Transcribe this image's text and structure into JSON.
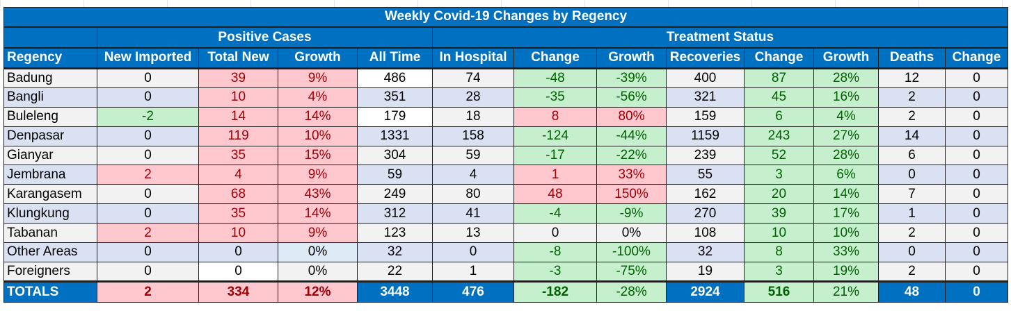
{
  "title": "Weekly Covid-19 Changes by Regency",
  "groups": {
    "positive": "Positive Cases",
    "treatment": "Treatment Status"
  },
  "headers": [
    "Regency",
    "New Imported",
    "Total New",
    "Growth",
    "All Time",
    "In Hospital",
    "Change",
    "Growth",
    "Recoveries",
    "Change",
    "Growth",
    "Deaths",
    "Change"
  ],
  "rows": [
    [
      "Badung",
      "0",
      "39",
      "9%",
      "486",
      "74",
      "-48",
      "-39%",
      "400",
      "87",
      "28%",
      "12",
      "0"
    ],
    [
      "Bangli",
      "0",
      "10",
      "4%",
      "351",
      "28",
      "-35",
      "-56%",
      "321",
      "45",
      "16%",
      "2",
      "0"
    ],
    [
      "Buleleng",
      "-2",
      "14",
      "14%",
      "179",
      "18",
      "8",
      "80%",
      "159",
      "6",
      "4%",
      "2",
      "0"
    ],
    [
      "Denpasar",
      "0",
      "119",
      "10%",
      "1331",
      "158",
      "-124",
      "-44%",
      "1159",
      "243",
      "27%",
      "14",
      "0"
    ],
    [
      "Gianyar",
      "0",
      "35",
      "15%",
      "304",
      "59",
      "-17",
      "-22%",
      "239",
      "52",
      "28%",
      "6",
      "0"
    ],
    [
      "Jembrana",
      "2",
      "4",
      "9%",
      "59",
      "4",
      "1",
      "33%",
      "55",
      "3",
      "6%",
      "0",
      "0"
    ],
    [
      "Karangasem",
      "0",
      "68",
      "43%",
      "249",
      "80",
      "48",
      "150%",
      "162",
      "20",
      "14%",
      "7",
      "0"
    ],
    [
      "Klungkung",
      "0",
      "35",
      "14%",
      "312",
      "41",
      "-4",
      "-9%",
      "270",
      "39",
      "17%",
      "1",
      "0"
    ],
    [
      "Tabanan",
      "2",
      "10",
      "9%",
      "123",
      "13",
      "0",
      "0%",
      "108",
      "10",
      "10%",
      "2",
      "0"
    ],
    [
      "Other Areas",
      "0",
      "0",
      "0%",
      "32",
      "0",
      "-8",
      "-100%",
      "32",
      "8",
      "33%",
      "0",
      "0"
    ],
    [
      "Foreigners",
      "0",
      "0",
      "0%",
      "22",
      "1",
      "-3",
      "-75%",
      "19",
      "3",
      "19%",
      "2",
      "0"
    ]
  ],
  "totals": [
    "TOTALS",
    "2",
    "334",
    "12%",
    "3448",
    "476",
    "-182",
    "-28%",
    "2924",
    "516",
    "21%",
    "48",
    "0"
  ],
  "colors": {
    "header_blue": "#0070c0",
    "increase_fill": "#ffc7ce",
    "increase_text": "#9c0006",
    "decrease_fill": "#c6efce",
    "decrease_text": "#006100",
    "row_odd": "#f2f2f2",
    "row_even": "#d9e1f2"
  }
}
